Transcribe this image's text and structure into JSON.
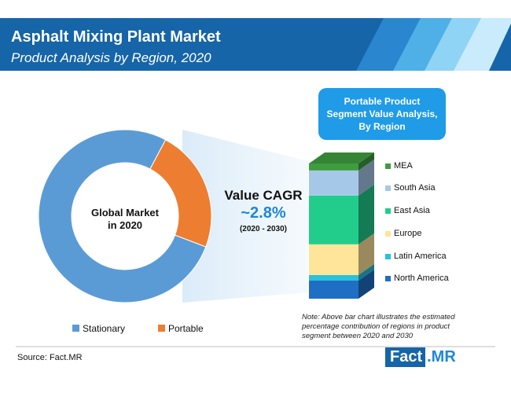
{
  "header": {
    "title": "Asphalt Mixing Plant Market",
    "subtitle": "Product Analysis by Region, 2020"
  },
  "callout": {
    "line1": "Portable Product",
    "line2": "Segment Value Analysis,",
    "line3": "By Region"
  },
  "cagr": {
    "title": "Value CAGR",
    "value": "~2.8%",
    "period": "(2020 - 2030)"
  },
  "note": "Note: Above bar chart illustrates the estimated percentage contribution of regions in product segment between 2020 and 2030",
  "source": "Source: Fact.MR",
  "brand": {
    "part1": "Fact",
    "part2": ".MR"
  },
  "colors": {
    "header_bg": "#1565a8",
    "stationary": "#5b9bd5",
    "portable": "#ed7d31",
    "accent": "#1f86d6"
  },
  "chart_data": [
    {
      "type": "pie",
      "subtype": "donut",
      "center_label": [
        "Global Market",
        "in 2020"
      ],
      "labels": [
        "Stationary",
        "Portable"
      ],
      "values": [
        77,
        23
      ],
      "colors": [
        "#5b9bd5",
        "#ed7d31"
      ],
      "legend_position": "bottom"
    },
    {
      "type": "bar",
      "subtype": "stacked-100",
      "categories": [
        "Portable"
      ],
      "series": [
        {
          "name": "North America",
          "values": [
            13
          ],
          "color": "#1e6fc4"
        },
        {
          "name": "Latin America",
          "values": [
            4
          ],
          "color": "#27c3d8"
        },
        {
          "name": "Europe",
          "values": [
            22
          ],
          "color": "#ffe59a"
        },
        {
          "name": "East Asia",
          "values": [
            35
          ],
          "color": "#22cd8c"
        },
        {
          "name": "South Asia",
          "values": [
            18
          ],
          "color": "#a6c8e8"
        },
        {
          "name": "MEA",
          "values": [
            5
          ],
          "color": "#3f9d3f"
        }
      ],
      "legend_position": "right"
    }
  ]
}
